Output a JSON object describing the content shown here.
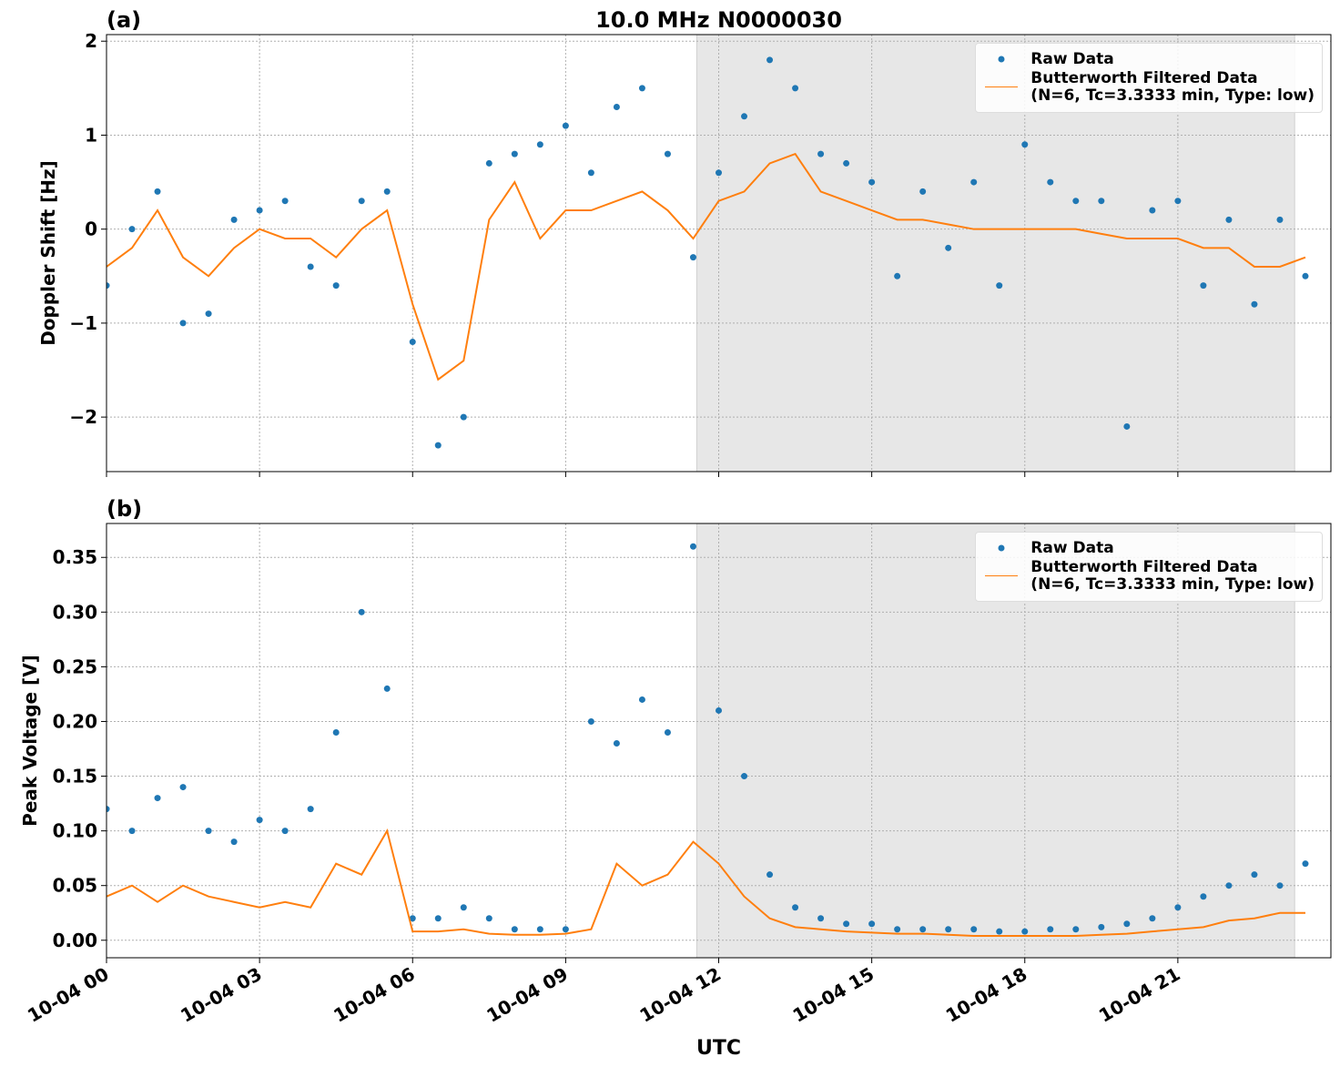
{
  "chart_data": [
    {
      "type": "line",
      "panel_label": "(a)",
      "title": "10.0 MHz N0000030",
      "ylabel": "Doppler Shift [Hz]",
      "x": [
        0,
        0.5,
        1,
        1.5,
        2,
        2.5,
        3,
        3.5,
        4,
        4.5,
        5,
        5.5,
        6,
        6.5,
        7,
        7.5,
        8,
        8.5,
        9,
        9.5,
        10,
        10.5,
        11,
        11.5,
        12,
        12.5,
        13,
        13.5,
        14,
        14.5,
        15,
        15.5,
        16,
        16.5,
        17,
        17.5,
        18,
        18.5,
        19,
        19.5,
        20,
        20.5,
        21,
        21.5,
        22,
        22.5,
        23,
        23.5
      ],
      "xlim": [
        0,
        24
      ],
      "ylim": [
        -2.58,
        2.07
      ],
      "yticks": [
        {
          "value": -2,
          "label": "−2"
        },
        {
          "value": -1,
          "label": "−1"
        },
        0,
        1,
        2
      ],
      "grid": true,
      "shade": [
        11.57,
        23.29
      ],
      "legend": "upper right",
      "series": [
        {
          "name": "Raw Data",
          "style": "points",
          "color": "#1f77b4",
          "values": [
            -0.6,
            0.0,
            0.4,
            -1.0,
            -0.9,
            0.1,
            0.2,
            0.3,
            -0.4,
            -0.6,
            0.3,
            0.4,
            -1.2,
            -2.3,
            -2.0,
            0.7,
            0.8,
            0.9,
            1.1,
            0.6,
            1.3,
            1.5,
            0.8,
            -0.3,
            0.6,
            1.2,
            1.8,
            1.5,
            0.8,
            0.7,
            0.5,
            -0.5,
            0.4,
            -0.2,
            0.5,
            -0.6,
            0.9,
            0.5,
            0.3,
            0.3,
            -2.1,
            0.2,
            0.3,
            -0.6,
            0.1,
            -0.8,
            0.1,
            -0.5
          ]
        },
        {
          "name": "Butterworth Filtered Data\n(N=6, Tc=3.3333 min, Type: low)",
          "style": "line",
          "color": "#ff7f0e",
          "values": [
            -0.4,
            -0.2,
            0.2,
            -0.3,
            -0.5,
            -0.2,
            0,
            -0.1,
            -0.1,
            -0.3,
            0,
            0.2,
            -0.8,
            -1.6,
            -1.4,
            0.1,
            0.5,
            -0.1,
            0.2,
            0.2,
            0.3,
            0.4,
            0.2,
            -0.1,
            0.3,
            0.4,
            0.7,
            0.8,
            0.4,
            0.3,
            0.2,
            0.1,
            0.1,
            0.05,
            0,
            0,
            0,
            0,
            0,
            -0.05,
            -0.1,
            -0.1,
            -0.1,
            -0.2,
            -0.2,
            -0.4,
            -0.4,
            -0.3
          ]
        }
      ]
    },
    {
      "type": "line",
      "panel_label": "(b)",
      "ylabel": "Peak Voltage [V]",
      "xlabel": "UTC",
      "x": [
        0,
        0.5,
        1,
        1.5,
        2,
        2.5,
        3,
        3.5,
        4,
        4.5,
        5,
        5.5,
        6,
        6.5,
        7,
        7.5,
        8,
        8.5,
        9,
        9.5,
        10,
        10.5,
        11,
        11.5,
        12,
        12.5,
        13,
        13.5,
        14,
        14.5,
        15,
        15.5,
        16,
        16.5,
        17,
        17.5,
        18,
        18.5,
        19,
        19.5,
        20,
        20.5,
        21,
        21.5,
        22,
        22.5,
        23,
        23.5
      ],
      "xlim": [
        0,
        24
      ],
      "ylim": [
        -0.016,
        0.381
      ],
      "xticks": [
        {
          "value": 0,
          "label": "10-04 00"
        },
        {
          "value": 3,
          "label": "10-04 03"
        },
        {
          "value": 6,
          "label": "10-04 06"
        },
        {
          "value": 9,
          "label": "10-04 09"
        },
        {
          "value": 12,
          "label": "10-04 12"
        },
        {
          "value": 15,
          "label": "10-04 15"
        },
        {
          "value": 18,
          "label": "10-04 18"
        },
        {
          "value": 21,
          "label": "10-04 21"
        }
      ],
      "yticks": [
        {
          "value": 0,
          "label": "0.00"
        },
        0.05,
        {
          "value": 0.1,
          "label": "0.10"
        },
        0.15,
        {
          "value": 0.2,
          "label": "0.20"
        },
        0.25,
        {
          "value": 0.3,
          "label": "0.30"
        },
        0.35
      ],
      "grid": true,
      "shade": [
        11.57,
        23.29
      ],
      "legend": "upper right",
      "series": [
        {
          "name": "Raw Data",
          "style": "points",
          "color": "#1f77b4",
          "values": [
            0.12,
            0.1,
            0.13,
            0.14,
            0.1,
            0.09,
            0.11,
            0.1,
            0.12,
            0.19,
            0.3,
            0.23,
            0.02,
            0.02,
            0.03,
            0.02,
            0.01,
            0.01,
            0.01,
            0.2,
            0.18,
            0.22,
            0.19,
            0.36,
            0.21,
            0.15,
            0.06,
            0.03,
            0.02,
            0.015,
            0.015,
            0.01,
            0.01,
            0.01,
            0.01,
            0.008,
            0.008,
            0.01,
            0.01,
            0.012,
            0.015,
            0.02,
            0.03,
            0.04,
            0.05,
            0.06,
            0.05,
            0.07
          ]
        },
        {
          "name": "Butterworth Filtered Data\n(N=6, Tc=3.3333 min, Type: low)",
          "style": "line",
          "color": "#ff7f0e",
          "values": [
            0.04,
            0.05,
            0.035,
            0.05,
            0.04,
            0.035,
            0.03,
            0.035,
            0.03,
            0.07,
            0.06,
            0.1,
            0.008,
            0.008,
            0.01,
            0.006,
            0.005,
            0.005,
            0.006,
            0.01,
            0.07,
            0.05,
            0.06,
            0.09,
            0.07,
            0.04,
            0.02,
            0.012,
            0.01,
            0.008,
            0.007,
            0.006,
            0.006,
            0.005,
            0.004,
            0.004,
            0.004,
            0.004,
            0.004,
            0.005,
            0.006,
            0.008,
            0.01,
            0.012,
            0.018,
            0.02,
            0.025,
            0.025
          ]
        }
      ]
    }
  ]
}
